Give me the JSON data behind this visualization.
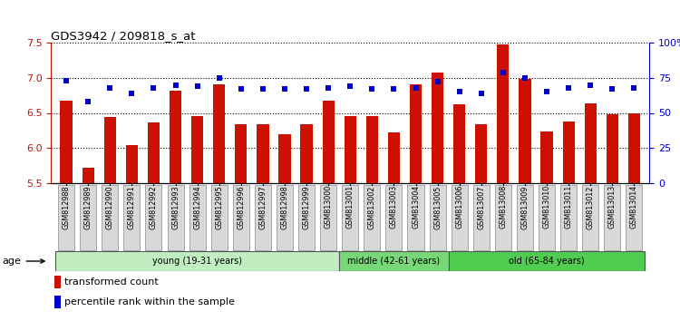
{
  "title": "GDS3942 / 209818_s_at",
  "samples": [
    "GSM812988",
    "GSM812989",
    "GSM812990",
    "GSM812991",
    "GSM812992",
    "GSM812993",
    "GSM812994",
    "GSM812995",
    "GSM812996",
    "GSM812997",
    "GSM812998",
    "GSM812999",
    "GSM813000",
    "GSM813001",
    "GSM813002",
    "GSM813003",
    "GSM813004",
    "GSM813005",
    "GSM813006",
    "GSM813007",
    "GSM813008",
    "GSM813009",
    "GSM813010",
    "GSM813011",
    "GSM813012",
    "GSM813013",
    "GSM813014"
  ],
  "bar_values": [
    6.68,
    5.72,
    6.44,
    6.04,
    6.36,
    6.82,
    6.46,
    6.9,
    6.34,
    6.34,
    6.2,
    6.34,
    6.68,
    6.46,
    6.46,
    6.22,
    6.9,
    7.08,
    6.62,
    6.34,
    7.48,
    6.98,
    6.24,
    6.38,
    6.64,
    6.48,
    6.5
  ],
  "percentile_values": [
    73,
    58,
    68,
    64,
    68,
    70,
    69,
    75,
    67,
    67,
    67,
    67,
    68,
    69,
    67,
    67,
    68,
    72,
    65,
    64,
    79,
    75,
    65,
    68,
    70,
    67,
    68
  ],
  "groups": [
    {
      "label": "young (19-31 years)",
      "start": 0,
      "end": 13,
      "color": "#c0eec0"
    },
    {
      "label": "middle (42-61 years)",
      "start": 13,
      "end": 18,
      "color": "#78d878"
    },
    {
      "label": "old (65-84 years)",
      "start": 18,
      "end": 27,
      "color": "#50cc50"
    }
  ],
  "ylim_left": [
    5.5,
    7.5
  ],
  "ylim_right": [
    0,
    100
  ],
  "yticks_left": [
    5.5,
    6.0,
    6.5,
    7.0,
    7.5
  ],
  "yticks_right": [
    0,
    25,
    50,
    75,
    100
  ],
  "ytick_labels_right": [
    "0",
    "25",
    "50",
    "75",
    "100%"
  ],
  "bar_color": "#cc1100",
  "dot_color": "#0000cc",
  "plot_bg": "#ffffff"
}
